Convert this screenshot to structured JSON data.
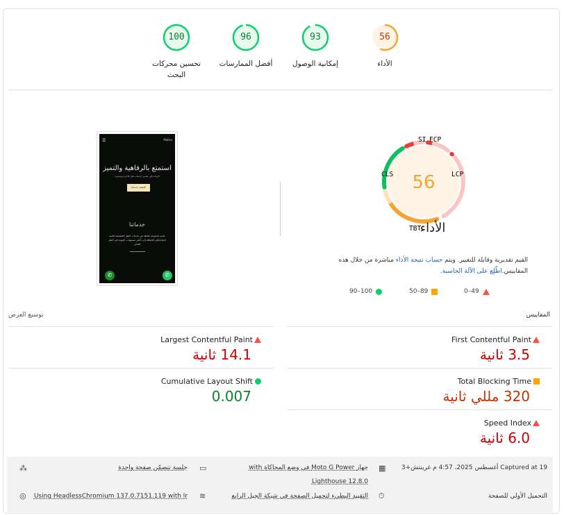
{
  "categories": [
    {
      "label": "الأداء",
      "score": "56",
      "color": "#f4a433",
      "bg": "#fff3e6",
      "text": "#c33300"
    },
    {
      "label": "إمكانية الوصول",
      "score": "93",
      "color": "#0cce6b",
      "bg": "#e8f9ee",
      "text": "#08802c"
    },
    {
      "label": "أفضل الممارسات",
      "score": "96",
      "color": "#0cce6b",
      "bg": "#e8f9ee",
      "text": "#08802c"
    },
    {
      "label": "تحسين محركات البحث",
      "score": "100",
      "color": "#0cce6b",
      "bg": "#e8f9ee",
      "text": "#08802c"
    }
  ],
  "gauge": {
    "score": "56",
    "title": "الأداء",
    "labels": {
      "si": "SI",
      "fcp": "FCP",
      "lcp": "LCP",
      "tbt": "TBT",
      "cls": "CLS"
    }
  },
  "screenshot": {
    "brand": "Mabru",
    "headline": "استمتع بالرفاهية والتميز",
    "subline": "الريادة في تقديم خدمات نقل فاخرة ومتميزة",
    "cta": "اكتشف خدماتنا",
    "section": "خدماتنا",
    "body": "نقدم مجموعة شاملة من خدمات النقل المصممة لتلبية احتياجاتكم بالإضافة إلى أعلى مستويات الجودة في النقل الفاخر"
  },
  "description": {
    "text1": "القيم تقديرية وقابلة للتغيير. ويتم ",
    "link1": "حساب نتيجة الأداء",
    "text2": " مباشرة من خلال هذه المقاييس.",
    "link2": "اطّلِع على الآلة الحاسبة."
  },
  "legend": [
    {
      "range": "0–49",
      "shape": "triangle",
      "color": "#ff4e42"
    },
    {
      "range": "50–89",
      "shape": "square",
      "color": "#ffa400"
    },
    {
      "range": "90–100",
      "shape": "circle",
      "color": "#0cce6b"
    }
  ],
  "metrics_header": "المقاييس",
  "expand_view": "توسيع العرض",
  "metrics": [
    {
      "name": "First Contentful Paint",
      "value": "3.5 ثانية",
      "status": "fail",
      "color": "#c00"
    },
    {
      "name": "Largest Contentful Paint",
      "value": "14.1 ثانية",
      "status": "fail",
      "color": "#c00"
    },
    {
      "name": "Total Blocking Time",
      "value": "320 مللي ثانية",
      "status": "average",
      "color": "#c33300"
    },
    {
      "name": "Cumulative Layout Shift",
      "value": "0.007",
      "status": "pass",
      "color": "#0a7f2e"
    },
    {
      "name": "Speed Index",
      "value": "6.0 ثانية",
      "status": "fail",
      "color": "#c00"
    }
  ],
  "footer": {
    "captured": "Captured at 19 أغسطس 2025، 4:57 م غرينتش+3",
    "device": "جهاز Moto G Power في وضع المحاكاة with",
    "lighthouse": "Lighthouse 12.8.0",
    "session": "جلسة تتضمّن صفحة واحدة",
    "load": "التحميل الأولي للصفحة",
    "throttle": "التقييد البطيء لتحميل الصفحة في شبكة الجيل الرابع",
    "browser": "Using HeadlessChromium 137.0.7151.119 with lr"
  }
}
